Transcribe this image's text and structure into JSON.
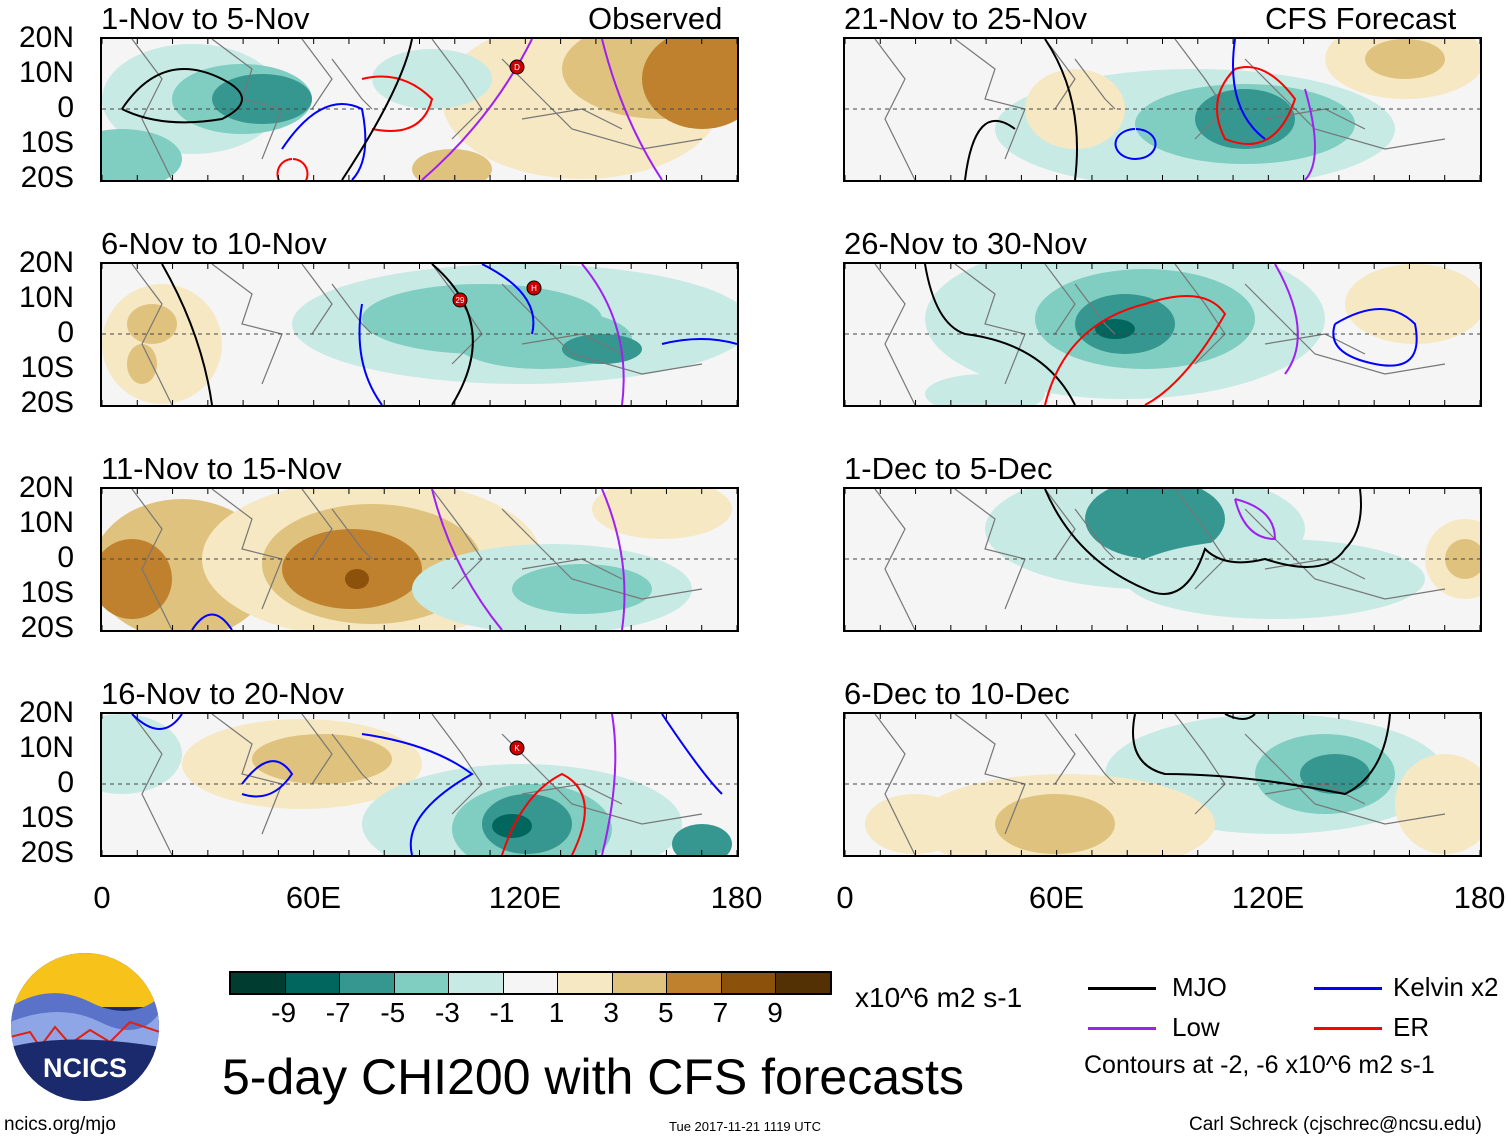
{
  "header": {
    "observed_label": "Observed",
    "forecast_label": "CFS Forecast"
  },
  "panels": [
    {
      "title": "1-Nov to 5-Nov",
      "storms": [
        "D"
      ]
    },
    {
      "title": "6-Nov to 10-Nov",
      "storms": [
        "29",
        "H"
      ]
    },
    {
      "title": "11-Nov to 15-Nov",
      "storms": []
    },
    {
      "title": "16-Nov to 20-Nov",
      "storms": [
        "K"
      ]
    },
    {
      "title": "21-Nov to 25-Nov",
      "storms": []
    },
    {
      "title": "26-Nov to 30-Nov",
      "storms": []
    },
    {
      "title": "1-Dec to 5-Dec",
      "storms": []
    },
    {
      "title": "6-Dec to 10-Dec",
      "storms": []
    }
  ],
  "axes": {
    "lat_labels": [
      "20N",
      "10N",
      "0",
      "10S",
      "20S"
    ],
    "lon_labels": [
      "0",
      "60E",
      "120E",
      "180"
    ]
  },
  "colorbar": {
    "colors": [
      "#003c30",
      "#01665e",
      "#35978f",
      "#80cdc1",
      "#c7eae5",
      "#f5f5f5",
      "#f6e8c3",
      "#dfc27d",
      "#bf812d",
      "#8c510a",
      "#543005"
    ],
    "labels": [
      "-9",
      "-7",
      "-5",
      "-3",
      "-1",
      "1",
      "3",
      "5",
      "7",
      "9"
    ],
    "units": "x10^6 m2 s-1"
  },
  "legend": {
    "items": [
      {
        "label": "MJO",
        "color": "#000000"
      },
      {
        "label": "Kelvin x2",
        "color": "#0000ff"
      },
      {
        "label": "Low",
        "color": "#a020f0"
      },
      {
        "label": "ER",
        "color": "#ff0000"
      }
    ],
    "contours_note": "Contours at -2, -6 x10^6 m2 s-1"
  },
  "footer": {
    "title": "5-day CHI200 with CFS forecasts",
    "timestamp": "Tue 2017-11-21 1119 UTC",
    "url": "ncics.org/mjo",
    "author": "Carl Schreck (cjschrec@ncsu.edu)",
    "logo_text": "NCICS"
  }
}
